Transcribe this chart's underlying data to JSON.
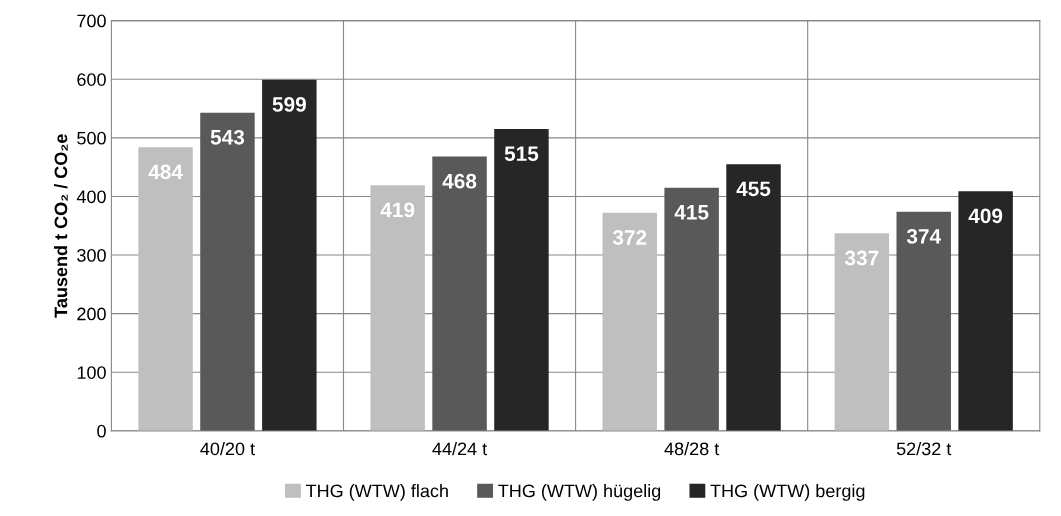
{
  "chart_data": {
    "type": "bar",
    "ylabel": "Tausend t CO₂ / CO₂e",
    "categories": [
      "40/20 t",
      "44/24 t",
      "48/28 t",
      "52/32 t"
    ],
    "series": [
      {
        "name": "THG (WTW) flach",
        "color": "#bfbfbf",
        "values": [
          484,
          419,
          372,
          337
        ]
      },
      {
        "name": "THG (WTW) hügelig",
        "color": "#595959",
        "values": [
          543,
          468,
          415,
          374
        ]
      },
      {
        "name": "THG (WTW) bergig",
        "color": "#262626",
        "values": [
          599,
          515,
          455,
          409
        ]
      }
    ],
    "ylim": [
      0,
      700
    ],
    "yticks": [
      0,
      100,
      200,
      300,
      400,
      500,
      600,
      700
    ],
    "grid": true,
    "legend": "bottom",
    "data_labels": true
  }
}
